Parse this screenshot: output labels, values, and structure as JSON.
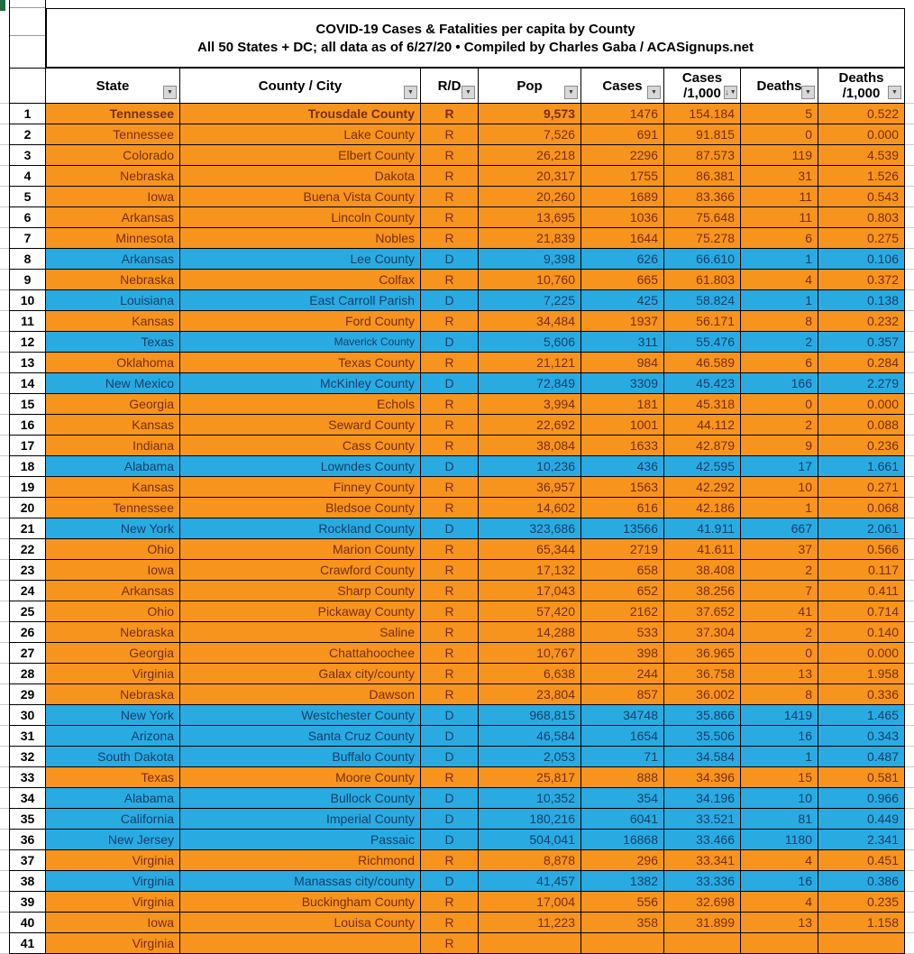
{
  "sheet": {
    "title": {
      "line1": "COVID-19 Cases & Fatalities per capita by County",
      "line2": "All 50 States + DC; all data as of 6/27/20  • Compiled by Charles Gaba / ACASignups.net"
    },
    "columns": [
      {
        "key": "state",
        "label": "State",
        "filter": "plain"
      },
      {
        "key": "county",
        "label": "County / City",
        "filter": "plain"
      },
      {
        "key": "rd",
        "label": "R/D",
        "filter": "plain"
      },
      {
        "key": "pop",
        "label": "Pop",
        "filter": "plain"
      },
      {
        "key": "cases",
        "label": "Cases",
        "filter": "plain"
      },
      {
        "key": "c1000",
        "label": "Cases",
        "label2": "/1,000",
        "filter": "sorted-desc"
      },
      {
        "key": "deaths",
        "label": "Deaths",
        "filter": "plain"
      },
      {
        "key": "d1000",
        "label": "Deaths",
        "label2": "/1,000",
        "filter": "plain"
      }
    ],
    "colors": {
      "republican_row_bg": "#F7941E",
      "democrat_row_bg": "#29ABE2",
      "republican_text": "#7A2E0B",
      "democrat_text": "#14406B"
    },
    "rows": [
      {
        "n": "1",
        "state": "Tennessee",
        "county": "Trousdale County",
        "rd": "R",
        "pop": "9,573",
        "cases": "1476",
        "c1000": "154.184",
        "deaths": "5",
        "d1000": "0.522",
        "bold": true
      },
      {
        "n": "2",
        "state": "Tennessee",
        "county": "Lake County",
        "rd": "R",
        "pop": "7,526",
        "cases": "691",
        "c1000": "91.815",
        "deaths": "0",
        "d1000": "0.000"
      },
      {
        "n": "3",
        "state": "Colorado",
        "county": "Elbert County",
        "rd": "R",
        "pop": "26,218",
        "cases": "2296",
        "c1000": "87.573",
        "deaths": "119",
        "d1000": "4.539"
      },
      {
        "n": "4",
        "state": "Nebraska",
        "county": "Dakota",
        "rd": "R",
        "pop": "20,317",
        "cases": "1755",
        "c1000": "86.381",
        "deaths": "31",
        "d1000": "1.526"
      },
      {
        "n": "5",
        "state": "Iowa",
        "county": "Buena Vista County",
        "rd": "R",
        "pop": "20,260",
        "cases": "1689",
        "c1000": "83.366",
        "deaths": "11",
        "d1000": "0.543"
      },
      {
        "n": "6",
        "state": "Arkansas",
        "county": "Lincoln County",
        "rd": "R",
        "pop": "13,695",
        "cases": "1036",
        "c1000": "75.648",
        "deaths": "11",
        "d1000": "0.803"
      },
      {
        "n": "7",
        "state": "Minnesota",
        "county": "Nobles",
        "rd": "R",
        "pop": "21,839",
        "cases": "1644",
        "c1000": "75.278",
        "deaths": "6",
        "d1000": "0.275"
      },
      {
        "n": "8",
        "state": "Arkansas",
        "county": "Lee County",
        "rd": "D",
        "pop": "9,398",
        "cases": "626",
        "c1000": "66.610",
        "deaths": "1",
        "d1000": "0.106"
      },
      {
        "n": "9",
        "state": "Nebraska",
        "county": "Colfax",
        "rd": "R",
        "pop": "10,760",
        "cases": "665",
        "c1000": "61.803",
        "deaths": "4",
        "d1000": "0.372"
      },
      {
        "n": "10",
        "state": "Louisiana",
        "county": "East Carroll Parish",
        "rd": "D",
        "pop": "7,225",
        "cases": "425",
        "c1000": "58.824",
        "deaths": "1",
        "d1000": "0.138"
      },
      {
        "n": "11",
        "state": "Kansas",
        "county": "Ford County",
        "rd": "R",
        "pop": "34,484",
        "cases": "1937",
        "c1000": "56.171",
        "deaths": "8",
        "d1000": "0.232"
      },
      {
        "n": "12",
        "state": "Texas",
        "county": "Maverick County",
        "rd": "D",
        "pop": "5,606",
        "cases": "311",
        "c1000": "55.476",
        "deaths": "2",
        "d1000": "0.357",
        "countySmall": true
      },
      {
        "n": "13",
        "state": "Oklahoma",
        "county": "Texas County",
        "rd": "R",
        "pop": "21,121",
        "cases": "984",
        "c1000": "46.589",
        "deaths": "6",
        "d1000": "0.284"
      },
      {
        "n": "14",
        "state": "New Mexico",
        "county": "McKinley County",
        "rd": "D",
        "pop": "72,849",
        "cases": "3309",
        "c1000": "45.423",
        "deaths": "166",
        "d1000": "2.279"
      },
      {
        "n": "15",
        "state": "Georgia",
        "county": "Echols",
        "rd": "R",
        "pop": "3,994",
        "cases": "181",
        "c1000": "45.318",
        "deaths": "0",
        "d1000": "0.000"
      },
      {
        "n": "16",
        "state": "Kansas",
        "county": "Seward County",
        "rd": "R",
        "pop": "22,692",
        "cases": "1001",
        "c1000": "44.112",
        "deaths": "2",
        "d1000": "0.088"
      },
      {
        "n": "17",
        "state": "Indiana",
        "county": "Cass County",
        "rd": "R",
        "pop": "38,084",
        "cases": "1633",
        "c1000": "42.879",
        "deaths": "9",
        "d1000": "0.236"
      },
      {
        "n": "18",
        "state": "Alabama",
        "county": "Lowndes County",
        "rd": "D",
        "pop": "10,236",
        "cases": "436",
        "c1000": "42.595",
        "deaths": "17",
        "d1000": "1.661"
      },
      {
        "n": "19",
        "state": "Kansas",
        "county": "Finney County",
        "rd": "R",
        "pop": "36,957",
        "cases": "1563",
        "c1000": "42.292",
        "deaths": "10",
        "d1000": "0.271"
      },
      {
        "n": "20",
        "state": "Tennessee",
        "county": "Bledsoe County",
        "rd": "R",
        "pop": "14,602",
        "cases": "616",
        "c1000": "42.186",
        "deaths": "1",
        "d1000": "0.068"
      },
      {
        "n": "21",
        "state": "New York",
        "county": "Rockland County",
        "rd": "D",
        "pop": "323,686",
        "cases": "13566",
        "c1000": "41.911",
        "deaths": "667",
        "d1000": "2.061"
      },
      {
        "n": "22",
        "state": "Ohio",
        "county": "Marion County",
        "rd": "R",
        "pop": "65,344",
        "cases": "2719",
        "c1000": "41.611",
        "deaths": "37",
        "d1000": "0.566"
      },
      {
        "n": "23",
        "state": "Iowa",
        "county": "Crawford County",
        "rd": "R",
        "pop": "17,132",
        "cases": "658",
        "c1000": "38.408",
        "deaths": "2",
        "d1000": "0.117"
      },
      {
        "n": "24",
        "state": "Arkansas",
        "county": "Sharp County",
        "rd": "R",
        "pop": "17,043",
        "cases": "652",
        "c1000": "38.256",
        "deaths": "7",
        "d1000": "0.411"
      },
      {
        "n": "25",
        "state": "Ohio",
        "county": "Pickaway County",
        "rd": "R",
        "pop": "57,420",
        "cases": "2162",
        "c1000": "37.652",
        "deaths": "41",
        "d1000": "0.714"
      },
      {
        "n": "26",
        "state": "Nebraska",
        "county": "Saline",
        "rd": "R",
        "pop": "14,288",
        "cases": "533",
        "c1000": "37.304",
        "deaths": "2",
        "d1000": "0.140"
      },
      {
        "n": "27",
        "state": "Georgia",
        "county": "Chattahoochee",
        "rd": "R",
        "pop": "10,767",
        "cases": "398",
        "c1000": "36.965",
        "deaths": "0",
        "d1000": "0.000"
      },
      {
        "n": "28",
        "state": "Virginia",
        "county": "Galax city/county",
        "rd": "R",
        "pop": "6,638",
        "cases": "244",
        "c1000": "36.758",
        "deaths": "13",
        "d1000": "1.958"
      },
      {
        "n": "29",
        "state": "Nebraska",
        "county": "Dawson",
        "rd": "R",
        "pop": "23,804",
        "cases": "857",
        "c1000": "36.002",
        "deaths": "8",
        "d1000": "0.336"
      },
      {
        "n": "30",
        "state": "New York",
        "county": "Westchester County",
        "rd": "D",
        "pop": "968,815",
        "cases": "34748",
        "c1000": "35.866",
        "deaths": "1419",
        "d1000": "1.465"
      },
      {
        "n": "31",
        "state": "Arizona",
        "county": "Santa Cruz County",
        "rd": "D",
        "pop": "46,584",
        "cases": "1654",
        "c1000": "35.506",
        "deaths": "16",
        "d1000": "0.343"
      },
      {
        "n": "32",
        "state": "South Dakota",
        "county": "Buffalo County",
        "rd": "D",
        "pop": "2,053",
        "cases": "71",
        "c1000": "34.584",
        "deaths": "1",
        "d1000": "0.487"
      },
      {
        "n": "33",
        "state": "Texas",
        "county": "Moore County",
        "rd": "R",
        "pop": "25,817",
        "cases": "888",
        "c1000": "34.396",
        "deaths": "15",
        "d1000": "0.581"
      },
      {
        "n": "34",
        "state": "Alabama",
        "county": "Bullock County",
        "rd": "D",
        "pop": "10,352",
        "cases": "354",
        "c1000": "34.196",
        "deaths": "10",
        "d1000": "0.966"
      },
      {
        "n": "35",
        "state": "California",
        "county": "Imperial County",
        "rd": "D",
        "pop": "180,216",
        "cases": "6041",
        "c1000": "33.521",
        "deaths": "81",
        "d1000": "0.449"
      },
      {
        "n": "36",
        "state": "New Jersey",
        "county": "Passaic",
        "rd": "D",
        "pop": "504,041",
        "cases": "16868",
        "c1000": "33.466",
        "deaths": "1180",
        "d1000": "2.341"
      },
      {
        "n": "37",
        "state": "Virginia",
        "county": "Richmond",
        "rd": "R",
        "pop": "8,878",
        "cases": "296",
        "c1000": "33.341",
        "deaths": "4",
        "d1000": "0.451"
      },
      {
        "n": "38",
        "state": "Virginia",
        "county": "Manassas city/county",
        "rd": "D",
        "pop": "41,457",
        "cases": "1382",
        "c1000": "33.336",
        "deaths": "16",
        "d1000": "0.386"
      },
      {
        "n": "39",
        "state": "Virginia",
        "county": "Buckingham County",
        "rd": "R",
        "pop": "17,004",
        "cases": "556",
        "c1000": "32.698",
        "deaths": "4",
        "d1000": "0.235"
      },
      {
        "n": "40",
        "state": "Iowa",
        "county": "Louisa County",
        "rd": "R",
        "pop": "11,223",
        "cases": "358",
        "c1000": "31.899",
        "deaths": "13",
        "d1000": "1.158"
      },
      {
        "n": "41",
        "state": "Virginia",
        "county": "",
        "rd": "R",
        "pop": "",
        "cases": "",
        "c1000": "",
        "deaths": "",
        "d1000": "",
        "clipped": true
      }
    ]
  }
}
